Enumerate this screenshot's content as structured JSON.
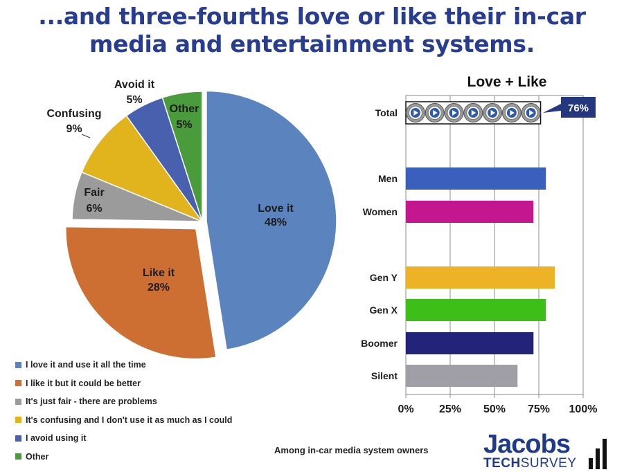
{
  "title": "...and three-fourths love or like their in-car media and entertainment systems.",
  "note": "Among  in-car media system owners",
  "logo": {
    "top": "Jacobs",
    "bottom_bold": "TECH",
    "bottom_thin": "SURVEY"
  },
  "chart_data": [
    {
      "type": "pie",
      "slices": [
        {
          "label": "Love it",
          "value": 48,
          "value_label": "48%",
          "legend": "I love it and use it all the time",
          "color": "#5b83bd"
        },
        {
          "label": "Like it",
          "value": 28,
          "value_label": "28%",
          "legend": "I like it but it could be better",
          "color": "#cd6f33"
        },
        {
          "label": "Fair",
          "value": 6,
          "value_label": "6%",
          "legend": "It's just fair - there are problems",
          "color": "#9b9b9b"
        },
        {
          "label": "Confusing",
          "value": 9,
          "value_label": "9%",
          "legend": "It's confusing and I don't use it as much as I could",
          "color": "#e1b31d"
        },
        {
          "label": "Avoid it",
          "value": 5,
          "value_label": "5%",
          "legend": "I avoid using it",
          "color": "#4860ad"
        },
        {
          "label": "Other",
          "value": 5,
          "value_label": "5%",
          "legend": "Other",
          "color": "#4a9b3c"
        }
      ],
      "exploded": [
        "Love it",
        "Like it"
      ],
      "legend_position": "bottom-left"
    },
    {
      "type": "bar",
      "orientation": "horizontal",
      "title": "Love + Like",
      "categories": [
        "Total",
        "Men",
        "Women",
        "Gen Y",
        "Gen X",
        "Boomer",
        "Silent"
      ],
      "values": [
        76,
        79,
        72,
        84,
        79,
        72,
        63
      ],
      "colors": [
        "#ffffff",
        "#3a5fbd",
        "#c4178f",
        "#edb225",
        "#3dbe19",
        "#23237a",
        "#a09ea6"
      ],
      "highlight_label": "76%",
      "xlim": [
        0,
        100
      ],
      "xticks": [
        0,
        25,
        50,
        75,
        100
      ],
      "xtick_labels": [
        "0%",
        "25%",
        "50%",
        "75%",
        "100%"
      ],
      "grid": "vertical"
    }
  ]
}
